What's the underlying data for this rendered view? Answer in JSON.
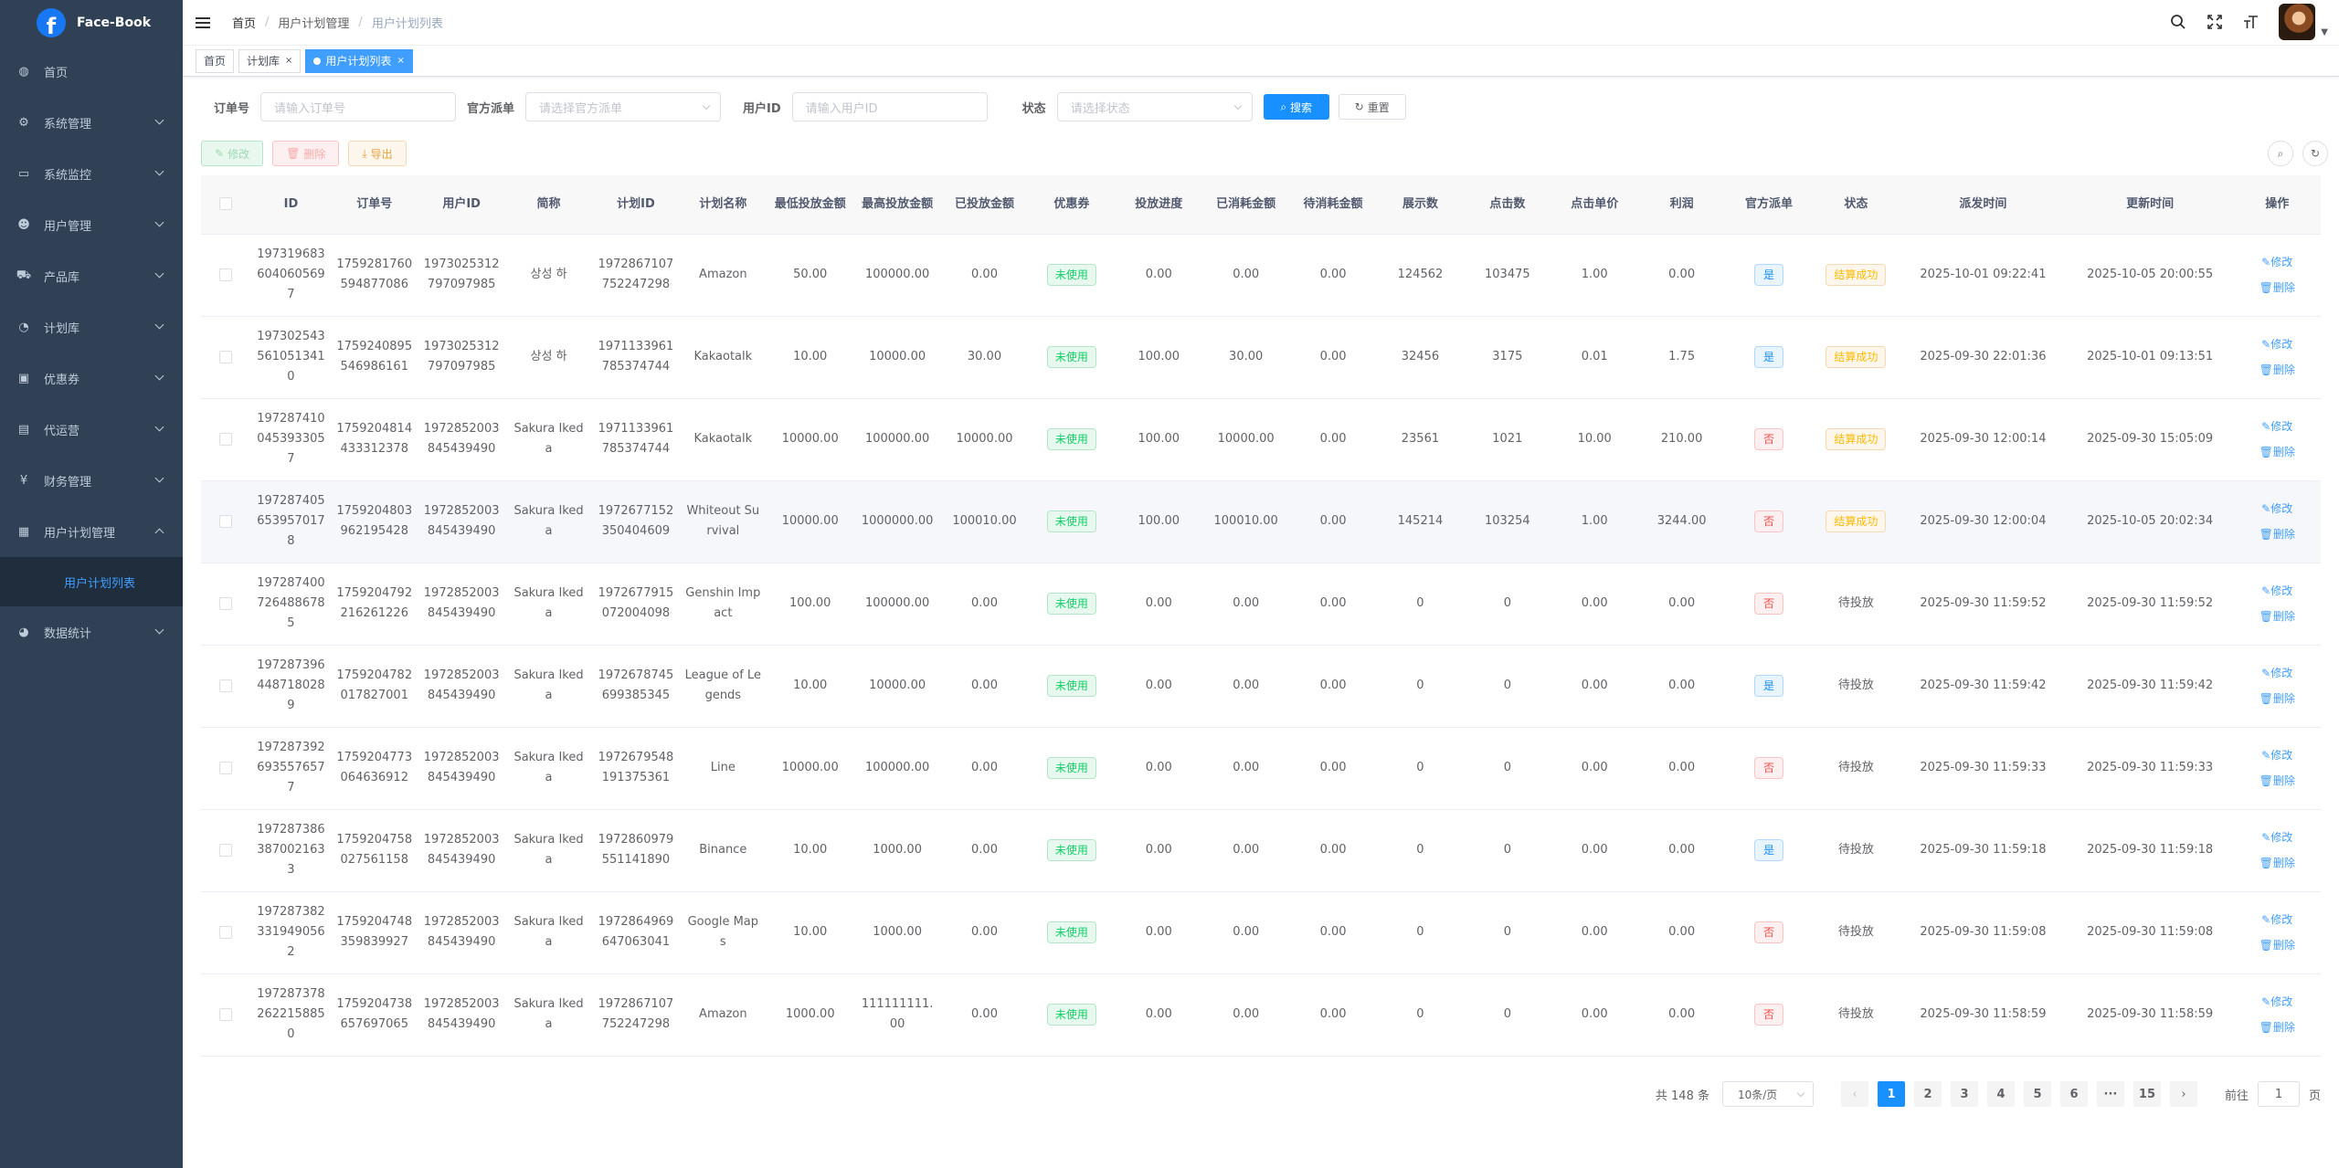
{
  "app": {
    "title": "Face-Book",
    "logo_letter": "f"
  },
  "sidebar": {
    "items": [
      {
        "label": "首页",
        "icon": "dashboard-icon",
        "glyph": "◍",
        "arrow": false
      },
      {
        "label": "系统管理",
        "icon": "gear-icon",
        "glyph": "⚙",
        "arrow": true
      },
      {
        "label": "系统监控",
        "icon": "monitor-icon",
        "glyph": "▭",
        "arrow": true
      },
      {
        "label": "用户管理",
        "icon": "user-icon",
        "glyph": "☻",
        "arrow": true
      },
      {
        "label": "产品库",
        "icon": "cart-icon",
        "glyph": "⛟",
        "arrow": true
      },
      {
        "label": "计划库",
        "icon": "clock-icon",
        "glyph": "◔",
        "arrow": true
      },
      {
        "label": "优惠券",
        "icon": "coupon-icon",
        "glyph": "▣",
        "arrow": true
      },
      {
        "label": "代运营",
        "icon": "document-icon",
        "glyph": "▤",
        "arrow": true
      },
      {
        "label": "财务管理",
        "icon": "yen-icon",
        "glyph": "¥",
        "arrow": true
      },
      {
        "label": "用户计划管理",
        "icon": "grid-icon",
        "glyph": "▦",
        "arrow": true,
        "expanded": true
      },
      {
        "label": "数据统计",
        "icon": "chart-icon",
        "glyph": "◕",
        "arrow": true
      }
    ],
    "submenu_active": "用户计划列表"
  },
  "breadcrumb": {
    "home": "首页",
    "level2": "用户计划管理",
    "current": "用户计划列表"
  },
  "tags": [
    {
      "label": "首页",
      "active": false
    },
    {
      "label": "计划库",
      "active": false,
      "dropdown": true
    },
    {
      "label": "用户计划列表",
      "active": true
    }
  ],
  "search": {
    "order_label": "订单号",
    "order_placeholder": "请输入订单号",
    "official_label": "官方派单",
    "official_placeholder": "请选择官方派单",
    "userid_label": "用户ID",
    "userid_placeholder": "请输入用户ID",
    "status_label": "状态",
    "status_placeholder": "请选择状态",
    "search_btn": "搜索",
    "reset_btn": "重置"
  },
  "toolbar": {
    "edit": "修改",
    "delete": "删除",
    "export": "导出"
  },
  "table": {
    "headers": [
      "ID",
      "订单号",
      "用户ID",
      "简称",
      "计划ID",
      "计划名称",
      "最低投放金额",
      "最高投放金额",
      "已投放金额",
      "优惠券",
      "投放进度",
      "已消耗金额",
      "待消耗金额",
      "展示数",
      "点击数",
      "点击单价",
      "利润",
      "官方派单",
      "状态",
      "派发时间",
      "更新时间",
      "操作"
    ],
    "rows": [
      [
        "1973196836040605697",
        "1759281760594877086",
        "1973025312797097985",
        "상성 하",
        "1972867107752247298",
        "Amazon",
        "50.00",
        "100000.00",
        "0.00",
        "未使用",
        "0.00",
        "0.00",
        "0.00",
        "124562",
        "103475",
        "1.00",
        "0.00",
        "是",
        "结算成功",
        "2025-10-01 09:22:41",
        "2025-10-05 20:00:55"
      ],
      [
        "1973025435610513410",
        "1759240895546986161",
        "1973025312797097985",
        "상성 하",
        "1971133961785374744",
        "Kakaotalk",
        "10.00",
        "10000.00",
        "30.00",
        "未使用",
        "100.00",
        "30.00",
        "0.00",
        "32456",
        "3175",
        "0.01",
        "1.75",
        "是",
        "结算成功",
        "2025-09-30 22:01:36",
        "2025-10-01 09:13:51"
      ],
      [
        "1972874100453933057",
        "1759204814433312378",
        "1972852003845439490",
        "Sakura Ikeda",
        "1971133961785374744",
        "Kakaotalk",
        "10000.00",
        "100000.00",
        "10000.00",
        "未使用",
        "100.00",
        "10000.00",
        "0.00",
        "23561",
        "1021",
        "10.00",
        "210.00",
        "否",
        "结算成功",
        "2025-09-30 12:00:14",
        "2025-09-30 15:05:09"
      ],
      [
        "1972874056539570178",
        "1759204803962195428",
        "1972852003845439490",
        "Sakura Ikeda",
        "1972677152350404609",
        "Whiteout Survival",
        "10000.00",
        "1000000.00",
        "100010.00",
        "未使用",
        "100.00",
        "100010.00",
        "0.00",
        "145214",
        "103254",
        "1.00",
        "3244.00",
        "否",
        "结算成功",
        "2025-09-30 12:00:04",
        "2025-10-05 20:02:34"
      ],
      [
        "1972874007264886785",
        "1759204792216261226",
        "1972852003845439490",
        "Sakura Ikeda",
        "1972677915072004098",
        "Genshin Impact",
        "100.00",
        "100000.00",
        "0.00",
        "未使用",
        "0.00",
        "0.00",
        "0.00",
        "0",
        "0",
        "0.00",
        "0.00",
        "否",
        "待投放",
        "2025-09-30 11:59:52",
        "2025-09-30 11:59:52"
      ],
      [
        "1972873964487180289",
        "1759204782017827001",
        "1972852003845439490",
        "Sakura Ikeda",
        "1972678745699385345",
        "League of Legends",
        "10.00",
        "10000.00",
        "0.00",
        "未使用",
        "0.00",
        "0.00",
        "0.00",
        "0",
        "0",
        "0.00",
        "0.00",
        "是",
        "待投放",
        "2025-09-30 11:59:42",
        "2025-09-30 11:59:42"
      ],
      [
        "1972873926935576577",
        "1759204773064636912",
        "1972852003845439490",
        "Sakura Ikeda",
        "1972679548191375361",
        "Line",
        "10000.00",
        "100000.00",
        "0.00",
        "未使用",
        "0.00",
        "0.00",
        "0.00",
        "0",
        "0",
        "0.00",
        "0.00",
        "否",
        "待投放",
        "2025-09-30 11:59:33",
        "2025-09-30 11:59:33"
      ],
      [
        "1972873863870021633",
        "1759204758027561158",
        "1972852003845439490",
        "Sakura Ikeda",
        "1972860979551141890",
        "Binance",
        "10.00",
        "1000.00",
        "0.00",
        "未使用",
        "0.00",
        "0.00",
        "0.00",
        "0",
        "0",
        "0.00",
        "0.00",
        "是",
        "待投放",
        "2025-09-30 11:59:18",
        "2025-09-30 11:59:18"
      ],
      [
        "1972873823319490562",
        "1759204748359839927",
        "1972852003845439490",
        "Sakura Ikeda",
        "1972864969647063041",
        "Google Maps",
        "10.00",
        "1000.00",
        "0.00",
        "未使用",
        "0.00",
        "0.00",
        "0.00",
        "0",
        "0",
        "0.00",
        "0.00",
        "否",
        "待投放",
        "2025-09-30 11:59:08",
        "2025-09-30 11:59:08"
      ],
      [
        "1972873782622158850",
        "1759204738657697065",
        "1972852003845439490",
        "Sakura Ikeda",
        "1972867107752247298",
        "Amazon",
        "1000.00",
        "111111111.00",
        "0.00",
        "未使用",
        "0.00",
        "0.00",
        "0.00",
        "0",
        "0",
        "0.00",
        "0.00",
        "否",
        "待投放",
        "2025-09-30 11:58:59",
        "2025-09-30 11:58:59"
      ]
    ],
    "op_edit": "修改",
    "op_delete": "删除",
    "highlight_row": 3
  },
  "pagination": {
    "total": "共 148 条",
    "page_size": "10条/页",
    "pages": [
      "1",
      "2",
      "3",
      "4",
      "5",
      "6",
      "···",
      "15"
    ],
    "current": "1",
    "goto_label": "前往",
    "goto_value": "1",
    "page_suffix": "页"
  },
  "colors": {
    "sidebar_bg": "#304156",
    "primary": "#1890ff",
    "success": "#13ce66",
    "danger": "#ff4949",
    "warning": "#ffba00"
  }
}
